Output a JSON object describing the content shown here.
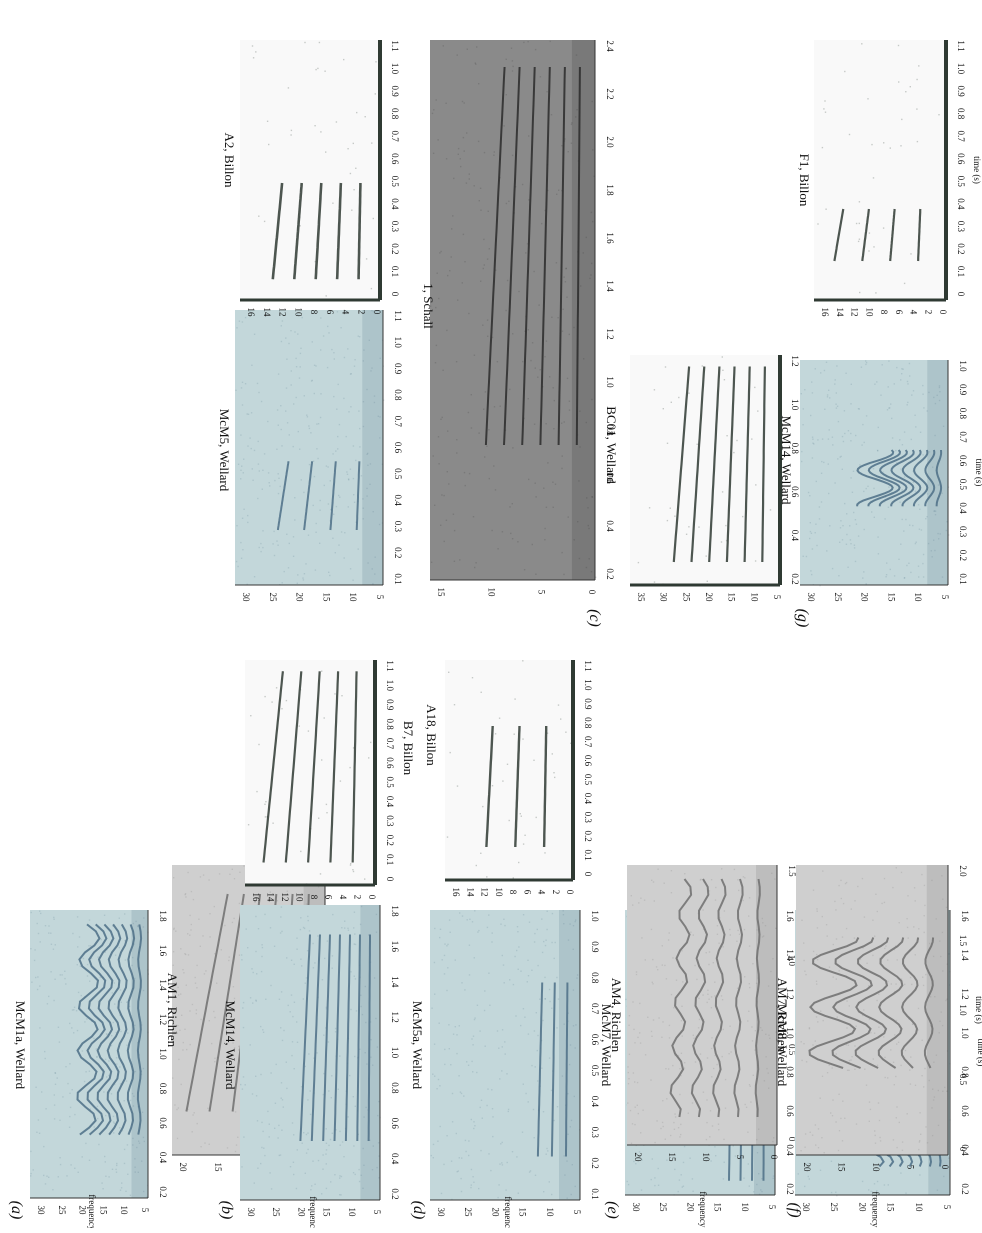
{
  "figure": {
    "panel_letters": [
      "(a)",
      "(b)",
      "(c)",
      "(d)",
      "(e)",
      "(f)",
      "(g)"
    ],
    "freq_axis_label": "frequency (kHz)",
    "time_axis_label": "time (s)"
  },
  "panels": [
    {
      "id": "a1",
      "label": "McM1a, Wellard",
      "style": "teal",
      "y_ticks": [
        "30",
        "25",
        "20",
        "15",
        "10",
        "5"
      ],
      "x_ticks": [
        "0.2",
        "0.4",
        "0.6",
        "0.8",
        "1.0",
        "1.2",
        "1.4",
        "1.6",
        "1.8"
      ],
      "show_freq_label": true
    },
    {
      "id": "a2",
      "label": "AM1, Richlen",
      "style": "gray",
      "y_ticks": [
        "20",
        "15",
        "10",
        "5",
        "0"
      ],
      "x_ticks": [
        "0",
        "0.5",
        "1.0",
        "1.5"
      ]
    },
    {
      "id": "a3",
      "label": "1, Schall",
      "style": "dark",
      "y_ticks": [
        "15",
        "10",
        "5",
        "0"
      ],
      "x_ticks": [
        "0.2",
        "0.4",
        "0.6",
        "0.8",
        "1.0",
        "1.2",
        "1.4",
        "1.6",
        "1.8",
        "2.0",
        "2.2",
        "2.4"
      ]
    },
    {
      "id": "b1",
      "label": "McM14, Wellard",
      "style": "teal",
      "y_ticks": [
        "30",
        "25",
        "20",
        "15",
        "10",
        "5"
      ],
      "x_ticks": [
        "0.2",
        "0.4",
        "0.6",
        "0.8",
        "1.0",
        "1.2",
        "1.4",
        "1.6",
        "1.8"
      ],
      "show_freq_label": true
    },
    {
      "id": "b2",
      "label": "B7, Billon",
      "style": "white",
      "y_ticks": [
        "16",
        "14",
        "12",
        "10",
        "8",
        "6",
        "4",
        "2",
        "0"
      ],
      "x_ticks": [
        "0",
        "0.1",
        "0.2",
        "0.3",
        "0.4",
        "0.5",
        "0.6",
        "0.7",
        "0.8",
        "0.9",
        "1.0",
        "1.1"
      ]
    },
    {
      "id": "c1",
      "label": "McM5, Wellard",
      "style": "teal",
      "y_ticks": [
        "30",
        "25",
        "20",
        "15",
        "10",
        "5"
      ],
      "x_ticks": [
        "0.1",
        "0.2",
        "0.3",
        "0.4",
        "0.5",
        "0.6",
        "0.7",
        "0.8",
        "0.9",
        "1.0",
        "1.1"
      ]
    },
    {
      "id": "c2",
      "label": "A2, Billon",
      "style": "white",
      "y_ticks": [
        "16",
        "14",
        "12",
        "10",
        "8",
        "6",
        "4",
        "2",
        "0"
      ],
      "x_ticks": [
        "0",
        "0.1",
        "0.2",
        "0.3",
        "0.4",
        "0.5",
        "0.6",
        "0.7",
        "0.8",
        "0.9",
        "1.0",
        "1.1"
      ]
    },
    {
      "id": "d1",
      "label": "McM5a, Wellard",
      "style": "teal",
      "y_ticks": [
        "30",
        "25",
        "20",
        "15",
        "10",
        "5"
      ],
      "x_ticks": [
        "0.1",
        "0.2",
        "0.3",
        "0.4",
        "0.5",
        "0.6",
        "0.7",
        "0.8",
        "0.9",
        "1.0"
      ],
      "show_freq_label": true
    },
    {
      "id": "d2",
      "label": "A18, Billon",
      "style": "white",
      "y_ticks": [
        "16",
        "14",
        "12",
        "10",
        "8",
        "6",
        "4",
        "2",
        "0"
      ],
      "x_ticks": [
        "0",
        "0.1",
        "0.2",
        "0.3",
        "0.4",
        "0.5",
        "0.6",
        "0.7",
        "0.8",
        "0.9",
        "1.0",
        "1.1"
      ]
    },
    {
      "id": "e1",
      "label": "McM7, Wellard",
      "style": "teal",
      "y_ticks": [
        "30",
        "25",
        "20",
        "15",
        "10",
        "5"
      ],
      "x_ticks": [
        "0.2",
        "0.4",
        "0.6",
        "0.8",
        "1.0",
        "1.2",
        "1.4",
        "1.6"
      ],
      "show_freq_label": true
    },
    {
      "id": "e2",
      "label": "AM4, Richlen",
      "style": "gray",
      "y_ticks": [
        "20",
        "15",
        "10",
        "5",
        "0"
      ],
      "x_ticks": [
        "0",
        "0.5",
        "1.0",
        "1.5"
      ]
    },
    {
      "id": "e3",
      "label": "BC01, Wellard",
      "style": "white",
      "y_ticks": [
        "35",
        "30",
        "25",
        "20",
        "15",
        "10",
        "5"
      ],
      "x_ticks": [
        "0.2",
        "0.4",
        "0.6",
        "0.8",
        "1.0",
        "1.2"
      ]
    },
    {
      "id": "f1",
      "label": "McM8, Wellard",
      "style": "teal",
      "y_ticks": [
        "30",
        "25",
        "20",
        "15",
        "10",
        "5"
      ],
      "x_ticks": [
        "0.2",
        "0.4",
        "0.6",
        "0.8",
        "1.0",
        "1.2",
        "1.4",
        "1.6"
      ],
      "show_freq_label": true,
      "show_time_label": true
    },
    {
      "id": "f2",
      "label": "AM7, Richlen",
      "style": "gray",
      "y_ticks": [
        "20",
        "15",
        "10",
        "5",
        "0"
      ],
      "x_ticks": [
        "0",
        "0.5",
        "1.0",
        "1.5",
        "2.0"
      ],
      "show_time_label": true
    },
    {
      "id": "g1",
      "label": "McM14, Wellard",
      "style": "teal",
      "y_ticks": [
        "30",
        "25",
        "20",
        "15",
        "10",
        "5"
      ],
      "x_ticks": [
        "0.1",
        "0.2",
        "0.3",
        "0.4",
        "0.5",
        "0.6",
        "0.7",
        "0.8",
        "0.9",
        "1.0"
      ],
      "show_time_label": true
    },
    {
      "id": "g2",
      "label": "F1, Billon",
      "style": "white",
      "y_ticks": [
        "16",
        "14",
        "12",
        "10",
        "8",
        "6",
        "4",
        "2",
        "0"
      ],
      "x_ticks": [
        "0",
        "0.1",
        "0.2",
        "0.3",
        "0.4",
        "0.5",
        "0.6",
        "0.7",
        "0.8",
        "0.9",
        "1.0",
        "1.1"
      ],
      "show_time_label": true
    }
  ],
  "colors": {
    "teal_bg": "#c3d7da",
    "teal_ink": "#4c6e86",
    "gray_bg": "#cfcfcf",
    "gray_ink": "#6e6e6e",
    "dark_bg": "#8a8a8a",
    "dark_ink": "#2a2a2a",
    "white_bg": "#f9f9f9",
    "white_ink": "#2f3a33",
    "axis": "#2f3a33"
  }
}
